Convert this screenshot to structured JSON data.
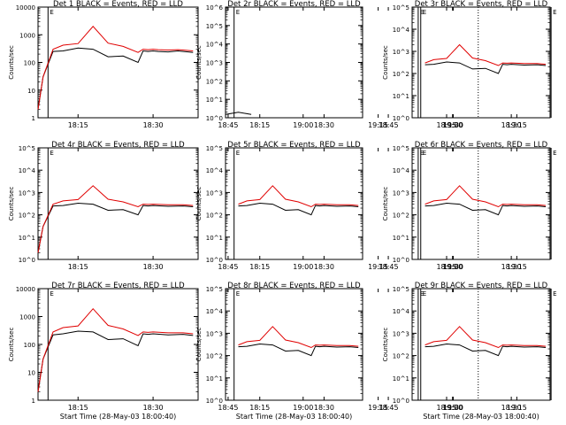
{
  "colors": {
    "events": "#000000",
    "lld": "#e00000",
    "axis": "#000000",
    "background": "#ffffff"
  },
  "chart_data": [
    {
      "type": "line",
      "title": "Det 1 BLACK = Events, RED = LLD",
      "xlabel": "",
      "ylabel": "Counts/sec",
      "xlim": [
        "18:07",
        "18:39"
      ],
      "ylim": [
        1,
        10000
      ],
      "yscale": "log",
      "xticks": [
        "18:15",
        "18:30",
        "18:45",
        "19:00",
        "19:15",
        "19:30"
      ],
      "yticks": [
        "1",
        "10",
        "100",
        "1000",
        "10000"
      ],
      "markers": [
        "18:09",
        "19:23",
        "19:35"
      ],
      "marker_labels": [
        "E",
        "E"
      ],
      "series": [
        {
          "name": "BLACK = Events",
          "x": [
            "18:07",
            "18:08",
            "18:10",
            "18:12",
            "18:15",
            "18:18",
            "18:21",
            "18:24",
            "18:27",
            "18:28",
            "18:29",
            "18:30",
            "18:31",
            "18:33",
            "18:35",
            "18:36",
            "18:37",
            "18:38"
          ],
          "values": [
            2,
            30,
            250,
            260,
            330,
            300,
            160,
            170,
            100,
            260,
            250,
            260,
            250,
            240,
            260,
            250,
            240,
            230
          ]
        },
        {
          "name": "RED = LLD",
          "x": [
            "18:07",
            "18:08",
            "18:10",
            "18:12",
            "18:15",
            "18:18",
            "18:21",
            "18:24",
            "18:27",
            "18:28",
            "18:29",
            "18:30",
            "18:31",
            "18:33",
            "18:35",
            "18:36",
            "18:37",
            "18:38"
          ],
          "values": [
            2,
            30,
            300,
            420,
            480,
            2000,
            500,
            380,
            230,
            300,
            290,
            300,
            290,
            280,
            290,
            280,
            270,
            260
          ]
        }
      ]
    },
    {
      "type": "line",
      "title": "Det 2r BLACK = Events, RED = LLD",
      "xlabel": "",
      "ylabel": "Counts/sec",
      "xlim": [
        "18:07",
        "18:39"
      ],
      "ylim": [
        1,
        1000000
      ],
      "yscale": "log",
      "xticks": [
        "18:15",
        "18:30",
        "18:45",
        "19:00",
        "19:15",
        "19:30"
      ],
      "yticks": [
        "10^0",
        "10^1",
        "10^2",
        "10^3",
        "10^4",
        "10^5",
        "10^6"
      ],
      "markers": [
        "18:09",
        "19:23",
        "19:35"
      ],
      "marker_labels": [
        "E",
        "E"
      ],
      "series": [
        {
          "name": "BLACK = Events",
          "x": [
            "18:05",
            "18:07",
            "18:10",
            "18:13"
          ],
          "values": [
            2,
            1.5,
            2,
            1.5
          ]
        },
        {
          "name": "RED = LLD",
          "x": [],
          "values": []
        }
      ]
    },
    {
      "type": "line",
      "title": "Det 3r BLACK = Events, RED = LLD",
      "xlabel": "",
      "ylabel": "Counts/sec",
      "xlim": [
        "18:07",
        "18:39"
      ],
      "ylim": [
        1,
        100000
      ],
      "yscale": "log",
      "xticks": [
        "18:15",
        "18:30",
        "18:45",
        "19:00",
        "19:15",
        "19:30"
      ],
      "yticks": [
        "10^0",
        "10^1",
        "10^2",
        "10^3",
        "10^4",
        "10^5"
      ],
      "markers": [
        "18:09",
        "19:23",
        "19:35"
      ],
      "marker_labels": [
        "E",
        "E"
      ],
      "series": [
        {
          "name": "BLACK = Events",
          "x": [
            "18:10",
            "18:12",
            "18:15",
            "18:18",
            "18:21",
            "18:24",
            "18:27",
            "18:28",
            "18:29",
            "18:30",
            "18:33",
            "18:36",
            "18:38"
          ],
          "values": [
            250,
            260,
            330,
            300,
            160,
            170,
            100,
            260,
            250,
            260,
            240,
            250,
            230
          ]
        },
        {
          "name": "RED = LLD",
          "x": [
            "18:10",
            "18:12",
            "18:15",
            "18:18",
            "18:21",
            "18:24",
            "18:27",
            "18:28",
            "18:29",
            "18:30",
            "18:33",
            "18:36",
            "18:38"
          ],
          "values": [
            300,
            420,
            480,
            2000,
            500,
            380,
            230,
            300,
            290,
            300,
            280,
            280,
            260
          ]
        }
      ]
    },
    {
      "type": "line",
      "title": "Det 4r BLACK = Events, RED = LLD",
      "xlabel": "",
      "ylabel": "Counts/sec",
      "xlim": [
        "18:07",
        "18:39"
      ],
      "ylim": [
        1,
        100000
      ],
      "yscale": "log",
      "xticks": [
        "18:15",
        "18:30",
        "18:45",
        "19:00",
        "19:15",
        "19:30"
      ],
      "yticks": [
        "10^0",
        "10^1",
        "10^2",
        "10^3",
        "10^4",
        "10^5"
      ],
      "markers": [
        "18:09",
        "19:23",
        "19:35"
      ],
      "marker_labels": [
        "E",
        "E"
      ],
      "series": [
        {
          "name": "BLACK = Events",
          "x": [
            "18:07",
            "18:08",
            "18:10",
            "18:12",
            "18:15",
            "18:18",
            "18:21",
            "18:24",
            "18:27",
            "18:28",
            "18:29",
            "18:30",
            "18:33",
            "18:36",
            "18:38"
          ],
          "values": [
            2,
            30,
            250,
            260,
            330,
            300,
            160,
            170,
            100,
            260,
            250,
            260,
            240,
            250,
            230
          ]
        },
        {
          "name": "RED = LLD",
          "x": [
            "18:07",
            "18:08",
            "18:10",
            "18:12",
            "18:15",
            "18:18",
            "18:21",
            "18:24",
            "18:27",
            "18:28",
            "18:29",
            "18:30",
            "18:33",
            "18:36",
            "18:38"
          ],
          "values": [
            2,
            30,
            300,
            420,
            480,
            2000,
            500,
            380,
            230,
            300,
            290,
            300,
            280,
            280,
            260
          ]
        }
      ]
    },
    {
      "type": "line",
      "title": "Det 5r BLACK = Events, RED = LLD",
      "xlabel": "",
      "ylabel": "Counts/sec",
      "xlim": [
        "18:07",
        "18:39"
      ],
      "ylim": [
        1,
        100000
      ],
      "yscale": "log",
      "xticks": [
        "18:15",
        "18:30",
        "18:45",
        "19:00",
        "19:15",
        "19:30"
      ],
      "yticks": [
        "10^0",
        "10^1",
        "10^2",
        "10^3",
        "10^4",
        "10^5"
      ],
      "markers": [
        "18:09",
        "19:23",
        "19:35"
      ],
      "marker_labels": [
        "E",
        "E"
      ],
      "series": [
        {
          "name": "BLACK = Events",
          "x": [
            "18:10",
            "18:12",
            "18:15",
            "18:18",
            "18:21",
            "18:24",
            "18:27",
            "18:28",
            "18:29",
            "18:30",
            "18:33",
            "18:36",
            "18:38"
          ],
          "values": [
            250,
            260,
            330,
            300,
            160,
            170,
            100,
            260,
            250,
            260,
            240,
            250,
            230
          ]
        },
        {
          "name": "RED = LLD",
          "x": [
            "18:10",
            "18:12",
            "18:15",
            "18:18",
            "18:21",
            "18:24",
            "18:27",
            "18:28",
            "18:29",
            "18:30",
            "18:33",
            "18:36",
            "18:38"
          ],
          "values": [
            300,
            420,
            480,
            2000,
            500,
            380,
            230,
            300,
            290,
            300,
            280,
            280,
            260
          ]
        }
      ]
    },
    {
      "type": "line",
      "title": "Det 6r BLACK = Events, RED = LLD",
      "xlabel": "",
      "ylabel": "Counts/sec",
      "xlim": [
        "18:07",
        "18:39"
      ],
      "ylim": [
        1,
        100000
      ],
      "yscale": "log",
      "xticks": [
        "18:15",
        "18:30",
        "18:45",
        "19:00",
        "19:15",
        "19:30"
      ],
      "yticks": [
        "10^0",
        "10^1",
        "10^2",
        "10^3",
        "10^4",
        "10^5"
      ],
      "markers": [
        "18:09",
        "19:23",
        "19:35"
      ],
      "marker_labels": [
        "E",
        "E"
      ],
      "series": [
        {
          "name": "BLACK = Events",
          "x": [
            "18:10",
            "18:12",
            "18:15",
            "18:18",
            "18:21",
            "18:24",
            "18:27",
            "18:28",
            "18:29",
            "18:30",
            "18:33",
            "18:36",
            "18:38"
          ],
          "values": [
            250,
            260,
            330,
            300,
            160,
            170,
            100,
            260,
            250,
            260,
            240,
            250,
            230
          ]
        },
        {
          "name": "RED = LLD",
          "x": [
            "18:10",
            "18:12",
            "18:15",
            "18:18",
            "18:21",
            "18:24",
            "18:27",
            "18:28",
            "18:29",
            "18:30",
            "18:33",
            "18:36",
            "18:38"
          ],
          "values": [
            300,
            420,
            480,
            2000,
            500,
            380,
            230,
            300,
            290,
            300,
            280,
            280,
            260
          ]
        }
      ]
    },
    {
      "type": "line",
      "title": "Det 7r BLACK = Events, RED = LLD",
      "xlabel": "Start Time (28-May-03 18:00:40)",
      "ylabel": "Counts/sec",
      "xlim": [
        "18:07",
        "18:39"
      ],
      "ylim": [
        1,
        10000
      ],
      "yscale": "log",
      "xticks": [
        "18:15",
        "18:30",
        "18:45",
        "19:00",
        "19:15",
        "19:30"
      ],
      "yticks": [
        "1",
        "10",
        "100",
        "1000",
        "10000"
      ],
      "markers": [
        "18:09",
        "19:23",
        "19:35"
      ],
      "marker_labels": [
        "E",
        "E"
      ],
      "series": [
        {
          "name": "BLACK = Events",
          "x": [
            "18:07",
            "18:08",
            "18:10",
            "18:12",
            "18:15",
            "18:18",
            "18:21",
            "18:24",
            "18:27",
            "18:28",
            "18:29",
            "18:30",
            "18:33",
            "18:36",
            "18:38"
          ],
          "values": [
            2,
            30,
            220,
            240,
            300,
            280,
            150,
            160,
            90,
            240,
            230,
            240,
            220,
            230,
            210
          ]
        },
        {
          "name": "RED = LLD",
          "x": [
            "18:07",
            "18:08",
            "18:10",
            "18:12",
            "18:15",
            "18:18",
            "18:21",
            "18:24",
            "18:27",
            "18:28",
            "18:29",
            "18:30",
            "18:33",
            "18:36",
            "18:38"
          ],
          "values": [
            2,
            30,
            280,
            400,
            460,
            1900,
            480,
            360,
            210,
            280,
            270,
            280,
            260,
            260,
            240
          ]
        }
      ]
    },
    {
      "type": "line",
      "title": "Det 8r BLACK = Events, RED = LLD",
      "xlabel": "Start Time (28-May-03 18:00:40)",
      "ylabel": "Counts/sec",
      "xlim": [
        "18:07",
        "18:39"
      ],
      "ylim": [
        1,
        100000
      ],
      "yscale": "log",
      "xticks": [
        "18:15",
        "18:30",
        "18:45",
        "19:00",
        "19:15",
        "19:30"
      ],
      "yticks": [
        "10^0",
        "10^1",
        "10^2",
        "10^3",
        "10^4",
        "10^5"
      ],
      "markers": [
        "18:09",
        "19:23",
        "19:35"
      ],
      "marker_labels": [
        "E",
        "E"
      ],
      "series": [
        {
          "name": "BLACK = Events",
          "x": [
            "18:10",
            "18:12",
            "18:15",
            "18:18",
            "18:21",
            "18:24",
            "18:27",
            "18:28",
            "18:29",
            "18:30",
            "18:33",
            "18:36",
            "18:38"
          ],
          "values": [
            250,
            260,
            330,
            300,
            160,
            170,
            100,
            260,
            250,
            260,
            240,
            250,
            230
          ]
        },
        {
          "name": "RED = LLD",
          "x": [
            "18:10",
            "18:12",
            "18:15",
            "18:18",
            "18:21",
            "18:24",
            "18:27",
            "18:28",
            "18:29",
            "18:30",
            "18:33",
            "18:36",
            "18:38"
          ],
          "values": [
            300,
            420,
            480,
            2000,
            500,
            380,
            230,
            300,
            290,
            300,
            280,
            280,
            260
          ]
        }
      ]
    },
    {
      "type": "line",
      "title": "Det 9r BLACK = Events, RED = LLD",
      "xlabel": "Start Time (28-May-03 18:00:40)",
      "ylabel": "Counts/sec",
      "xlim": [
        "18:07",
        "18:39"
      ],
      "ylim": [
        1,
        100000
      ],
      "yscale": "log",
      "xticks": [
        "18:15",
        "18:30",
        "18:45",
        "19:00",
        "19:15",
        "19:30"
      ],
      "yticks": [
        "10^0",
        "10^1",
        "10^2",
        "10^3",
        "10^4",
        "10^5"
      ],
      "markers": [
        "18:09",
        "19:23",
        "19:35"
      ],
      "marker_labels": [
        "E",
        "E"
      ],
      "series": [
        {
          "name": "BLACK = Events",
          "x": [
            "18:10",
            "18:12",
            "18:15",
            "18:18",
            "18:21",
            "18:24",
            "18:27",
            "18:28",
            "18:29",
            "18:30",
            "18:33",
            "18:36",
            "18:38"
          ],
          "values": [
            250,
            260,
            330,
            300,
            160,
            170,
            100,
            260,
            250,
            260,
            240,
            250,
            230
          ]
        },
        {
          "name": "RED = LLD",
          "x": [
            "18:10",
            "18:12",
            "18:15",
            "18:18",
            "18:21",
            "18:24",
            "18:27",
            "18:28",
            "18:29",
            "18:30",
            "18:33",
            "18:36",
            "18:38"
          ],
          "values": [
            300,
            420,
            480,
            2000,
            500,
            380,
            230,
            300,
            290,
            300,
            280,
            280,
            260
          ]
        }
      ]
    }
  ]
}
